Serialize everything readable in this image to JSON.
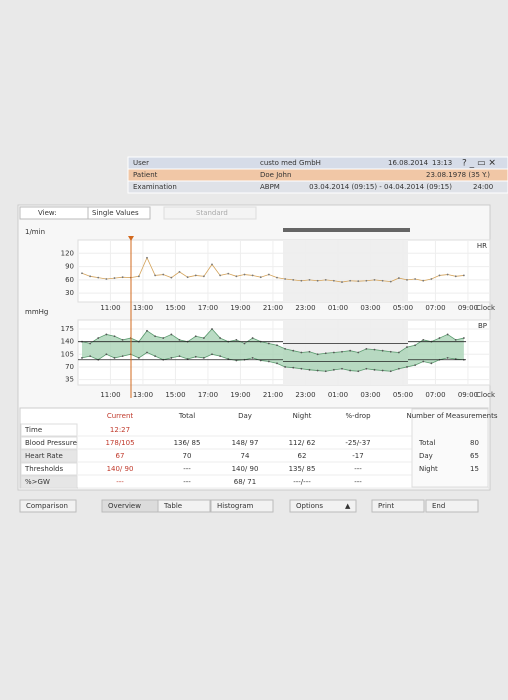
{
  "header": {
    "rows": [
      {
        "label": "User",
        "cells": [
          "custo med GmbH",
          "16.08.2014",
          "13:13"
        ]
      },
      {
        "label": "Patient",
        "cells": [
          "Doe John",
          "23.08.1978 (35 Y.)"
        ]
      },
      {
        "label": "Examination",
        "cells": [
          "ABPM",
          "03.04.2014 (09:15) - 04.04.2014 (09:15)",
          "24:00"
        ]
      }
    ]
  },
  "toolbar": {
    "view_label": "View:",
    "view_value": "Single Values",
    "mode": "Standard"
  },
  "hr_chart": {
    "type": "line",
    "ylabel": "1/min",
    "legend": "HR",
    "color": "#d4a35a",
    "ylim": [
      10,
      150
    ],
    "yticks": [
      120,
      90,
      60,
      30
    ],
    "xticks": [
      "11:00",
      "13:00",
      "15:00",
      "17:00",
      "19:00",
      "21:00",
      "23:00",
      "01:00",
      "03:00",
      "05:00",
      "07:00",
      "09:00"
    ],
    "x_unit": "Clock",
    "values": [
      75,
      68,
      65,
      62,
      64,
      66,
      65,
      68,
      110,
      70,
      72,
      65,
      78,
      66,
      70,
      68,
      95,
      70,
      74,
      68,
      72,
      70,
      66,
      72,
      65,
      62,
      60,
      58,
      60,
      58,
      60,
      58,
      55,
      58,
      57,
      58,
      60,
      58,
      56,
      64,
      60,
      62,
      58,
      62,
      70,
      72,
      68,
      70
    ]
  },
  "bp_chart": {
    "type": "area",
    "ylabel": "mmHg",
    "legend": "BP",
    "color": "#5a9a6e",
    "ylim": [
      20,
      200
    ],
    "yticks": [
      175,
      140,
      105,
      70,
      35
    ],
    "xticks": [
      "11:00",
      "13:00",
      "15:00",
      "17:00",
      "19:00",
      "21:00",
      "23:00",
      "01:00",
      "03:00",
      "05:00",
      "07:00",
      "09:00"
    ],
    "x_unit": "Clock",
    "thresholds": {
      "day": [
        140,
        90
      ],
      "night": [
        135,
        85
      ]
    },
    "series": [
      {
        "values": [
          140,
          135,
          150,
          160,
          155,
          145,
          150,
          140,
          170,
          155,
          150,
          160,
          145,
          140,
          155,
          150,
          175,
          150,
          140,
          145,
          135,
          150,
          140,
          135,
          130,
          120,
          115,
          110,
          112,
          105,
          108,
          110,
          112,
          115,
          110,
          120,
          118,
          115,
          112,
          110,
          125,
          130,
          145,
          140,
          150,
          160,
          145,
          150
        ]
      },
      {
        "values": [
          95,
          100,
          90,
          105,
          95,
          100,
          105,
          95,
          110,
          100,
          90,
          95,
          100,
          92,
          98,
          95,
          105,
          100,
          92,
          88,
          90,
          95,
          88,
          85,
          80,
          70,
          68,
          65,
          62,
          60,
          58,
          62,
          65,
          60,
          58,
          65,
          62,
          60,
          58,
          65,
          70,
          75,
          85,
          80,
          90,
          95,
          92,
          90
        ]
      }
    ]
  },
  "summary": {
    "columns": [
      "Current",
      "Total",
      "Day",
      "Night",
      "%-drop"
    ],
    "rows": [
      {
        "label": "Time",
        "cells": [
          "12:27"
        ]
      },
      {
        "label": "Blood Pressure",
        "cells": [
          "178/105",
          "136/ 85",
          "148/ 97",
          "112/ 62",
          "-25/-37"
        ]
      },
      {
        "label": "Heart Rate",
        "cells": [
          "67",
          "70",
          "74",
          "62",
          "-17"
        ]
      },
      {
        "label": "Thresholds",
        "cells": [
          "140/ 90",
          "---",
          "140/ 90",
          "135/ 85",
          "---"
        ]
      },
      {
        "label": "%>GW",
        "cells": [
          "---",
          "---",
          "68/ 71",
          "---/---",
          "---"
        ]
      }
    ]
  },
  "measurements": {
    "title": "Number of Measurements",
    "rows": [
      [
        "Total",
        "80"
      ],
      [
        "Day",
        "65"
      ],
      [
        "Night",
        "15"
      ]
    ]
  },
  "buttons": [
    "Comparison",
    "Overview",
    "Table",
    "Histogram",
    "Options",
    "Print",
    "End"
  ]
}
